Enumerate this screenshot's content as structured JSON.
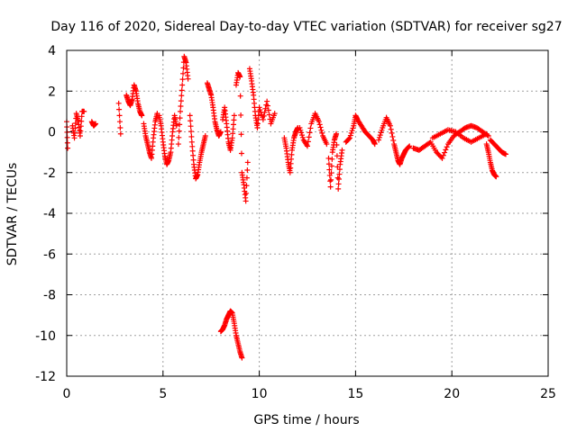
{
  "chart_data": {
    "type": "scatter",
    "title": "Day 116 of 2020, Sidereal Day-to-day VTEC variation (SDTVAR) for receiver sg27",
    "xlabel": "GPS time / hours",
    "ylabel": "SDTVAR / TECUs",
    "xlim": [
      0,
      25
    ],
    "ylim": [
      -12,
      4
    ],
    "xticks": [
      0,
      5,
      10,
      15,
      20,
      25
    ],
    "yticks": [
      -12,
      -10,
      -8,
      -6,
      -4,
      -2,
      0,
      2,
      4
    ],
    "grid": true,
    "marker": "+",
    "color": "#ff0000",
    "series": [
      {
        "name": "SDTVAR",
        "segments": [
          {
            "x": [
              0.0,
              0.05
            ],
            "y": [
              0.5,
              -0.8
            ]
          },
          {
            "x": [
              0.3,
              0.4,
              0.5,
              0.6,
              0.7,
              0.8,
              0.9
            ],
            "y": [
              0.3,
              -0.3,
              0.9,
              0.5,
              -0.2,
              1.0,
              1.0
            ]
          },
          {
            "x": [
              1.3,
              1.4,
              1.5
            ],
            "y": [
              0.5,
              0.3,
              0.4
            ]
          },
          {
            "x": [
              2.7,
              2.8
            ],
            "y": [
              1.4,
              -0.1
            ]
          },
          {
            "x": [
              3.1,
              3.2,
              3.3,
              3.4,
              3.5,
              3.6,
              3.7,
              3.8,
              3.9
            ],
            "y": [
              1.8,
              1.5,
              1.3,
              1.6,
              2.3,
              2.0,
              1.4,
              1.0,
              0.8
            ]
          },
          {
            "x": [
              4.0,
              4.1,
              4.2,
              4.3,
              4.4,
              4.5,
              4.6,
              4.7
            ],
            "y": [
              0.4,
              -0.2,
              -0.6,
              -1.0,
              -1.3,
              -0.3,
              0.5,
              0.9
            ]
          },
          {
            "x": [
              4.8,
              4.9,
              5.0,
              5.1,
              5.2,
              5.3,
              5.4,
              5.5,
              5.6,
              5.7
            ],
            "y": [
              0.8,
              0.3,
              -0.5,
              -1.2,
              -1.6,
              -1.4,
              -1.0,
              0.0,
              0.8,
              0.3
            ]
          },
          {
            "x": [
              5.8,
              5.9,
              6.0,
              6.1,
              6.2,
              6.3
            ],
            "y": [
              -0.6,
              1.0,
              2.3,
              3.7,
              3.4,
              2.6
            ]
          },
          {
            "x": [
              6.4,
              6.5,
              6.6,
              6.7,
              6.8,
              6.9,
              7.0,
              7.1,
              7.2
            ],
            "y": [
              0.8,
              -0.5,
              -1.6,
              -2.3,
              -2.1,
              -1.5,
              -1.0,
              -0.6,
              -0.2
            ]
          },
          {
            "x": [
              7.3,
              7.4,
              7.5,
              7.6,
              7.7,
              7.8,
              7.9,
              8.0
            ],
            "y": [
              2.4,
              2.1,
              1.8,
              1.2,
              0.5,
              0.1,
              -0.2,
              0.0
            ]
          },
          {
            "x": [
              8.1,
              8.2,
              8.3,
              8.4,
              8.5,
              8.6,
              8.7
            ],
            "y": [
              0.6,
              1.2,
              0.4,
              -0.5,
              -0.9,
              -0.3,
              0.8
            ]
          },
          {
            "x": [
              8.8,
              8.9,
              9.0,
              9.1,
              9.2,
              9.3,
              9.4
            ],
            "y": [
              2.3,
              2.9,
              2.7,
              -2.0,
              -2.6,
              -3.4,
              -1.5
            ]
          },
          {
            "x": [
              9.5,
              9.6,
              9.7,
              9.8,
              9.9,
              10.0,
              10.2,
              10.4,
              10.6,
              10.8
            ],
            "y": [
              3.1,
              2.5,
              1.8,
              0.8,
              0.2,
              1.2,
              0.6,
              1.5,
              0.4,
              0.9
            ]
          },
          {
            "x": [
              8.0,
              8.1,
              8.2,
              8.3,
              8.4,
              8.5,
              8.6,
              8.7,
              8.8,
              8.9,
              9.0,
              9.1
            ],
            "y": [
              -9.8,
              -9.7,
              -9.5,
              -9.2,
              -9.0,
              -8.8,
              -8.9,
              -9.4,
              -10.0,
              -10.4,
              -10.8,
              -11.1
            ]
          },
          {
            "x": [
              11.3,
              11.4,
              11.5,
              11.6,
              11.7,
              11.8,
              11.9,
              12.0
            ],
            "y": [
              -0.3,
              -0.8,
              -1.5,
              -2.0,
              -0.9,
              -0.3,
              0.0,
              0.2
            ]
          },
          {
            "x": [
              12.1,
              12.3,
              12.5,
              12.7,
              12.9,
              13.1,
              13.3,
              13.5
            ],
            "y": [
              0.2,
              -0.4,
              -0.7,
              0.4,
              0.9,
              0.5,
              -0.2,
              -0.6
            ]
          },
          {
            "x": [
              13.6,
              13.7,
              13.8,
              13.9,
              14.0,
              14.1,
              14.2,
              14.3
            ],
            "y": [
              -1.3,
              -2.7,
              -1.0,
              -0.4,
              -0.1,
              -2.8,
              -1.6,
              -0.9
            ]
          },
          {
            "x": [
              14.5,
              14.7,
              14.9,
              15.0,
              15.1,
              15.3,
              15.5,
              15.7,
              15.9,
              16.0
            ],
            "y": [
              -0.5,
              -0.3,
              0.3,
              0.8,
              0.6,
              0.3,
              0.0,
              -0.2,
              -0.4,
              -0.6
            ]
          },
          {
            "x": [
              16.2,
              16.4,
              16.6,
              16.8,
              17.0,
              17.1,
              17.2,
              17.3,
              17.4,
              17.5,
              17.6,
              17.8
            ],
            "y": [
              -0.4,
              0.2,
              0.7,
              0.3,
              -0.6,
              -1.0,
              -1.4,
              -1.6,
              -1.3,
              -1.1,
              -0.9,
              -0.7
            ]
          },
          {
            "x": [
              18.0,
              18.3,
              18.6,
              18.9,
              19.2,
              19.5,
              19.8,
              20.1,
              20.4,
              20.7,
              21.0,
              21.3,
              21.6,
              21.9
            ],
            "y": [
              -0.8,
              -0.9,
              -0.7,
              -0.5,
              -1.0,
              -1.3,
              -0.6,
              -0.2,
              0.0,
              0.2,
              0.3,
              0.2,
              0.0,
              -0.2
            ]
          },
          {
            "x": [
              19.0,
              19.4,
              19.8,
              20.2,
              20.6,
              21.0,
              21.4,
              21.8
            ],
            "y": [
              -0.3,
              -0.1,
              0.1,
              0.0,
              -0.3,
              -0.5,
              -0.3,
              -0.1
            ]
          },
          {
            "x": [
              21.8,
              21.9,
              22.0,
              22.1,
              22.2,
              22.3
            ],
            "y": [
              -0.6,
              -1.0,
              -1.5,
              -1.9,
              -2.1,
              -2.2
            ]
          },
          {
            "x": [
              22.0,
              22.2,
              22.4,
              22.6,
              22.8
            ],
            "y": [
              -0.4,
              -0.6,
              -0.8,
              -1.0,
              -1.1
            ]
          }
        ]
      }
    ]
  }
}
